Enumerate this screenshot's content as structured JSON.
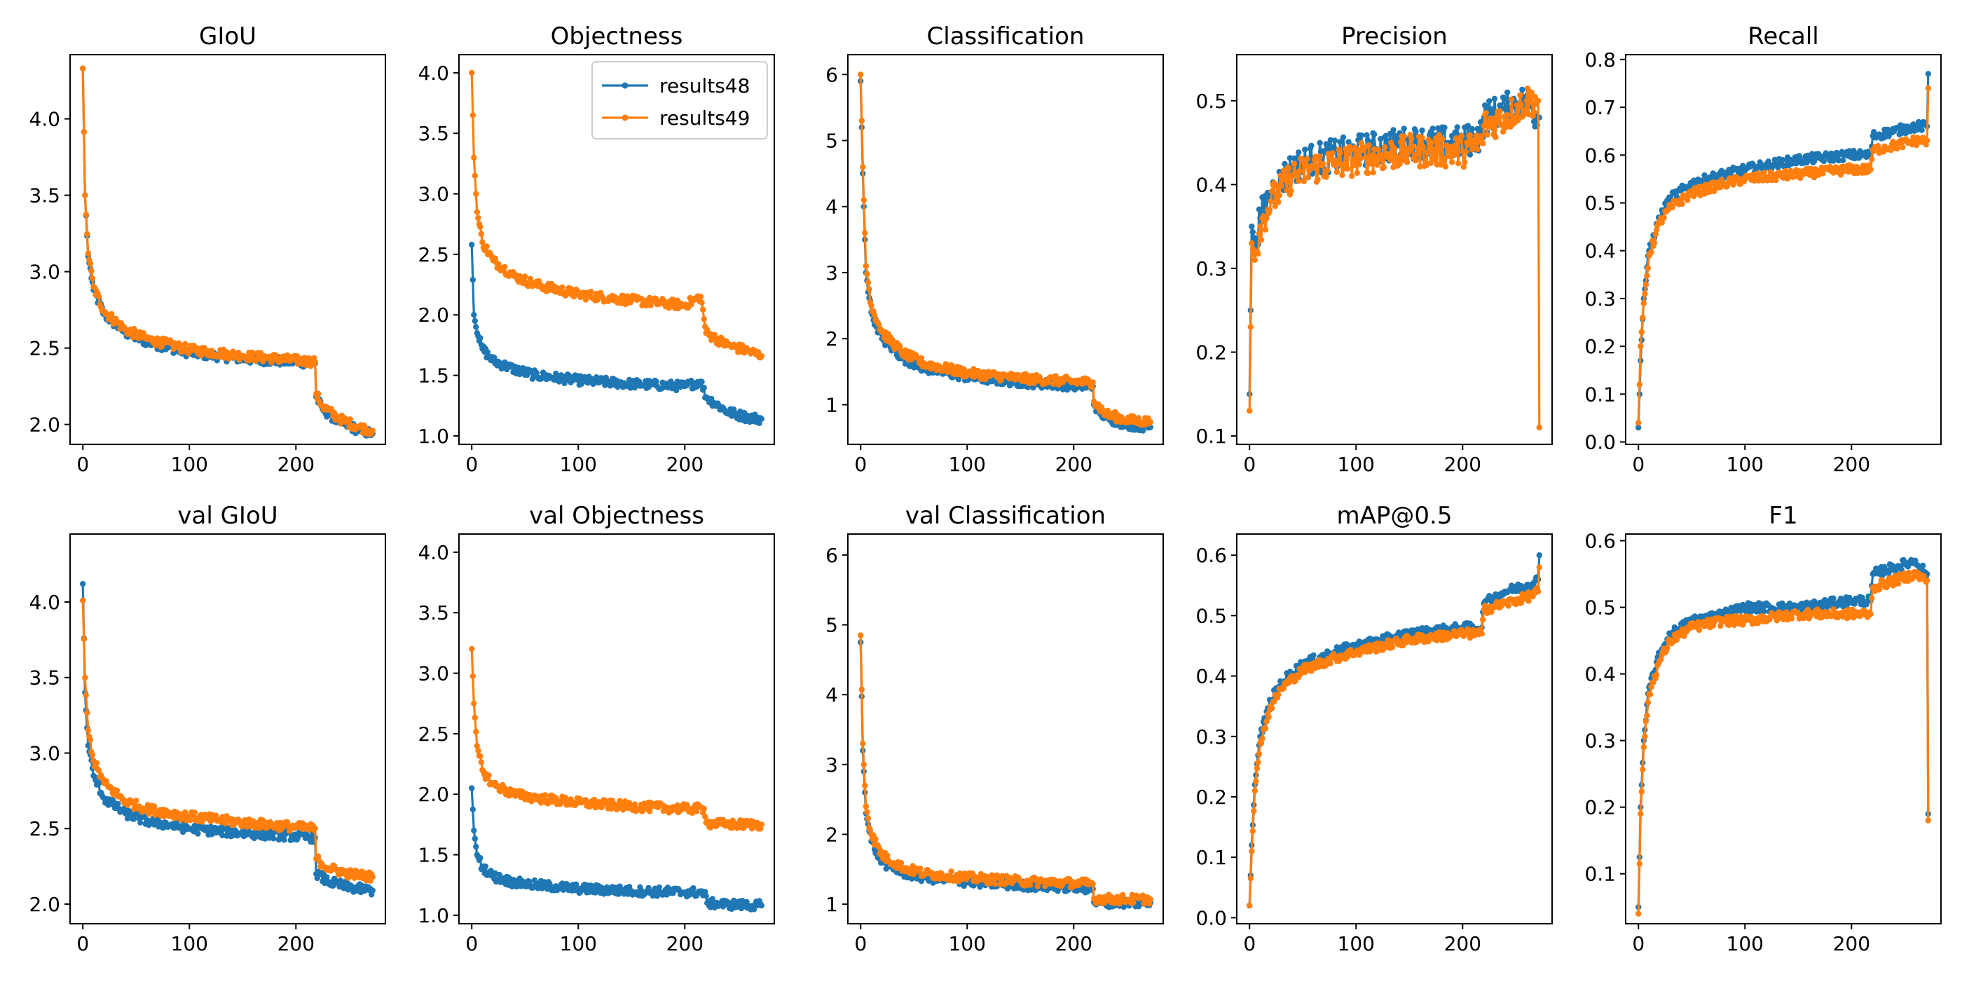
{
  "chart_data": [
    {
      "type": "line",
      "title": "GIoU",
      "xlabel": "",
      "ylabel": "",
      "xlim": [
        -12,
        284
      ],
      "ylim": [
        1.87,
        4.42
      ],
      "xticks": [
        0,
        100,
        200
      ],
      "xtick_labels": [
        "0",
        "100",
        "200"
      ],
      "yticks": [
        2.0,
        2.5,
        3.0,
        3.5,
        4.0
      ],
      "ytick_labels": [
        "2.0",
        "2.5",
        "3.0",
        "3.5",
        "4.0"
      ],
      "legend": null,
      "series": [
        {
          "name": "results48",
          "color": "#1f77b4",
          "x": [
            0,
            2,
            5,
            10,
            20,
            40,
            60,
            100,
            150,
            200,
            218,
            219,
            225,
            240,
            260,
            272
          ],
          "y": [
            4.33,
            3.5,
            3.1,
            2.88,
            2.72,
            2.6,
            2.54,
            2.47,
            2.43,
            2.41,
            2.4,
            2.18,
            2.1,
            2.02,
            1.96,
            1.94
          ]
        },
        {
          "name": "results49",
          "color": "#ff7f0e",
          "x": [
            0,
            2,
            5,
            10,
            20,
            40,
            60,
            100,
            150,
            200,
            218,
            219,
            225,
            240,
            260,
            272
          ],
          "y": [
            4.33,
            3.5,
            3.12,
            2.9,
            2.74,
            2.62,
            2.56,
            2.49,
            2.45,
            2.42,
            2.41,
            2.2,
            2.12,
            2.04,
            1.98,
            1.96
          ]
        }
      ]
    },
    {
      "type": "line",
      "title": "Objectness",
      "xlabel": "",
      "ylabel": "",
      "xlim": [
        -12,
        284
      ],
      "ylim": [
        0.93,
        4.15
      ],
      "xticks": [
        0,
        100,
        200
      ],
      "xtick_labels": [
        "0",
        "100",
        "200"
      ],
      "yticks": [
        1.0,
        1.5,
        2.0,
        2.5,
        3.0,
        3.5,
        4.0
      ],
      "ytick_labels": [
        "1.0",
        "1.5",
        "2.0",
        "2.5",
        "3.0",
        "3.5",
        "4.0"
      ],
      "legend": {
        "location": "top-right",
        "entries": [
          "results48",
          "results49"
        ]
      },
      "series": [
        {
          "name": "results48",
          "color": "#1f77b4",
          "x": [
            0,
            2,
            5,
            10,
            20,
            40,
            60,
            100,
            150,
            200,
            215,
            220,
            240,
            260,
            272
          ],
          "y": [
            2.58,
            2.0,
            1.85,
            1.72,
            1.62,
            1.55,
            1.5,
            1.46,
            1.43,
            1.41,
            1.45,
            1.32,
            1.2,
            1.15,
            1.14
          ]
        },
        {
          "name": "results49",
          "color": "#ff7f0e",
          "x": [
            0,
            2,
            5,
            10,
            20,
            40,
            60,
            100,
            150,
            200,
            215,
            220,
            240,
            260,
            272
          ],
          "y": [
            4.0,
            3.3,
            2.85,
            2.6,
            2.45,
            2.32,
            2.25,
            2.17,
            2.12,
            2.08,
            2.15,
            1.85,
            1.75,
            1.7,
            1.66
          ]
        }
      ]
    },
    {
      "type": "line",
      "title": "Classification",
      "xlabel": "",
      "ylabel": "",
      "xlim": [
        -12,
        284
      ],
      "ylim": [
        0.4,
        6.3
      ],
      "xticks": [
        0,
        100,
        200
      ],
      "xtick_labels": [
        "0",
        "100",
        "200"
      ],
      "yticks": [
        1,
        2,
        3,
        4,
        5,
        6
      ],
      "ytick_labels": [
        "1",
        "2",
        "3",
        "4",
        "5",
        "6"
      ],
      "legend": null,
      "series": [
        {
          "name": "results48",
          "color": "#1f77b4",
          "x": [
            0,
            2,
            5,
            10,
            20,
            40,
            60,
            100,
            150,
            200,
            218,
            219,
            230,
            250,
            272
          ],
          "y": [
            5.9,
            4.5,
            3.0,
            2.4,
            2.0,
            1.7,
            1.55,
            1.42,
            1.34,
            1.29,
            1.28,
            1.0,
            0.8,
            0.7,
            0.66
          ]
        },
        {
          "name": "results49",
          "color": "#ff7f0e",
          "x": [
            0,
            2,
            5,
            10,
            20,
            40,
            60,
            100,
            150,
            200,
            218,
            219,
            230,
            250,
            272
          ],
          "y": [
            6.0,
            4.6,
            3.1,
            2.5,
            2.1,
            1.78,
            1.62,
            1.48,
            1.4,
            1.35,
            1.34,
            1.05,
            0.86,
            0.77,
            0.74
          ]
        }
      ]
    },
    {
      "type": "line",
      "title": "Precision",
      "xlabel": "",
      "ylabel": "",
      "xlim": [
        -12,
        284
      ],
      "ylim": [
        0.09,
        0.555
      ],
      "xticks": [
        0,
        100,
        200
      ],
      "xtick_labels": [
        "0",
        "100",
        "200"
      ],
      "yticks": [
        0.1,
        0.2,
        0.3,
        0.4,
        0.5
      ],
      "ytick_labels": [
        "0.1",
        "0.2",
        "0.3",
        "0.4",
        "0.5"
      ],
      "legend": null,
      "series": [
        {
          "name": "results48",
          "color": "#1f77b4",
          "x": [
            0,
            2,
            5,
            10,
            20,
            40,
            60,
            100,
            150,
            200,
            218,
            220,
            240,
            260,
            271,
            272
          ],
          "y": [
            0.15,
            0.35,
            0.33,
            0.36,
            0.39,
            0.42,
            0.43,
            0.44,
            0.45,
            0.45,
            0.46,
            0.48,
            0.49,
            0.5,
            0.48,
            0.48
          ]
        },
        {
          "name": "results49",
          "color": "#ff7f0e",
          "x": [
            0,
            2,
            5,
            10,
            20,
            40,
            60,
            100,
            150,
            200,
            218,
            220,
            240,
            260,
            271,
            272
          ],
          "y": [
            0.13,
            0.33,
            0.31,
            0.35,
            0.38,
            0.41,
            0.42,
            0.43,
            0.44,
            0.44,
            0.45,
            0.47,
            0.48,
            0.5,
            0.5,
            0.11
          ]
        }
      ]
    },
    {
      "type": "line",
      "title": "Recall",
      "xlabel": "",
      "ylabel": "",
      "xlim": [
        -12,
        284
      ],
      "ylim": [
        -0.005,
        0.81
      ],
      "xticks": [
        0,
        100,
        200
      ],
      "xtick_labels": [
        "0",
        "100",
        "200"
      ],
      "yticks": [
        0.0,
        0.1,
        0.2,
        0.3,
        0.4,
        0.5,
        0.6,
        0.7,
        0.8
      ],
      "ytick_labels": [
        "0.0",
        "0.1",
        "0.2",
        "0.3",
        "0.4",
        "0.5",
        "0.6",
        "0.7",
        "0.8"
      ],
      "legend": null,
      "series": [
        {
          "name": "results48",
          "color": "#1f77b4",
          "x": [
            0,
            2,
            5,
            10,
            20,
            30,
            50,
            80,
            100,
            150,
            200,
            218,
            220,
            240,
            260,
            271,
            272
          ],
          "y": [
            0.03,
            0.17,
            0.3,
            0.4,
            0.47,
            0.51,
            0.54,
            0.56,
            0.57,
            0.59,
            0.6,
            0.6,
            0.64,
            0.65,
            0.66,
            0.66,
            0.77
          ]
        },
        {
          "name": "results49",
          "color": "#ff7f0e",
          "x": [
            0,
            2,
            5,
            10,
            20,
            30,
            50,
            80,
            100,
            150,
            200,
            218,
            220,
            240,
            260,
            271,
            272
          ],
          "y": [
            0.04,
            0.2,
            0.29,
            0.39,
            0.46,
            0.49,
            0.52,
            0.54,
            0.55,
            0.56,
            0.57,
            0.57,
            0.61,
            0.62,
            0.63,
            0.63,
            0.74
          ]
        }
      ]
    },
    {
      "type": "line",
      "title": "val GIoU",
      "xlabel": "",
      "ylabel": "",
      "xlim": [
        -12,
        284
      ],
      "ylim": [
        1.87,
        4.45
      ],
      "xticks": [
        0,
        100,
        200
      ],
      "xtick_labels": [
        "0",
        "100",
        "200"
      ],
      "yticks": [
        2.0,
        2.5,
        3.0,
        3.5,
        4.0
      ],
      "ytick_labels": [
        "2.0",
        "2.5",
        "3.0",
        "3.5",
        "4.0"
      ],
      "legend": null,
      "series": [
        {
          "name": "results48",
          "color": "#1f77b4",
          "x": [
            0,
            2,
            5,
            10,
            20,
            40,
            60,
            100,
            150,
            200,
            218,
            219,
            230,
            250,
            272
          ],
          "y": [
            4.12,
            3.4,
            3.05,
            2.85,
            2.7,
            2.6,
            2.55,
            2.5,
            2.47,
            2.45,
            2.44,
            2.2,
            2.15,
            2.11,
            2.09
          ]
        },
        {
          "name": "results49",
          "color": "#ff7f0e",
          "x": [
            0,
            2,
            5,
            10,
            20,
            40,
            60,
            100,
            150,
            200,
            218,
            219,
            230,
            250,
            272
          ],
          "y": [
            4.01,
            3.5,
            3.15,
            2.95,
            2.8,
            2.68,
            2.63,
            2.58,
            2.54,
            2.51,
            2.5,
            2.3,
            2.24,
            2.2,
            2.18
          ]
        }
      ]
    },
    {
      "type": "line",
      "title": "val Objectness",
      "xlabel": "",
      "ylabel": "",
      "xlim": [
        -12,
        284
      ],
      "ylim": [
        0.93,
        4.15
      ],
      "xticks": [
        0,
        100,
        200
      ],
      "xtick_labels": [
        "0",
        "100",
        "200"
      ],
      "yticks": [
        1.0,
        1.5,
        2.0,
        2.5,
        3.0,
        3.5,
        4.0
      ],
      "ytick_labels": [
        "1.0",
        "1.5",
        "2.0",
        "2.5",
        "3.0",
        "3.5",
        "4.0"
      ],
      "legend": null,
      "series": [
        {
          "name": "results48",
          "color": "#1f77b4",
          "x": [
            0,
            2,
            5,
            10,
            20,
            40,
            60,
            100,
            150,
            200,
            218,
            221,
            240,
            272
          ],
          "y": [
            2.05,
            1.7,
            1.5,
            1.4,
            1.32,
            1.27,
            1.25,
            1.22,
            1.2,
            1.19,
            1.19,
            1.1,
            1.09,
            1.08
          ]
        },
        {
          "name": "results49",
          "color": "#ff7f0e",
          "x": [
            0,
            2,
            5,
            10,
            20,
            40,
            60,
            100,
            150,
            200,
            218,
            221,
            240,
            272
          ],
          "y": [
            3.2,
            2.75,
            2.4,
            2.2,
            2.08,
            2.0,
            1.97,
            1.93,
            1.9,
            1.88,
            1.88,
            1.76,
            1.75,
            1.75
          ]
        }
      ]
    },
    {
      "type": "line",
      "title": "val Classification",
      "xlabel": "",
      "ylabel": "",
      "xlim": [
        -12,
        284
      ],
      "ylim": [
        0.72,
        6.3
      ],
      "xticks": [
        0,
        100,
        200
      ],
      "xtick_labels": [
        "0",
        "100",
        "200"
      ],
      "yticks": [
        1,
        2,
        3,
        4,
        5,
        6
      ],
      "ytick_labels": [
        "1",
        "2",
        "3",
        "4",
        "5",
        "6"
      ],
      "legend": null,
      "series": [
        {
          "name": "results48",
          "color": "#1f77b4",
          "x": [
            0,
            2,
            5,
            10,
            20,
            40,
            60,
            100,
            150,
            200,
            218,
            219,
            240,
            272
          ],
          "y": [
            4.75,
            3.2,
            2.3,
            1.9,
            1.6,
            1.45,
            1.38,
            1.32,
            1.27,
            1.24,
            1.22,
            1.03,
            1.02,
            1.02
          ]
        },
        {
          "name": "results49",
          "color": "#ff7f0e",
          "x": [
            0,
            2,
            5,
            10,
            20,
            40,
            60,
            100,
            150,
            200,
            218,
            219,
            240,
            272
          ],
          "y": [
            4.85,
            3.3,
            2.4,
            2.0,
            1.7,
            1.52,
            1.44,
            1.38,
            1.33,
            1.3,
            1.29,
            1.08,
            1.07,
            1.07
          ]
        }
      ]
    },
    {
      "type": "line",
      "title": "mAP@0.5",
      "xlabel": "",
      "ylabel": "",
      "xlim": [
        -12,
        284
      ],
      "ylim": [
        -0.01,
        0.635
      ],
      "xticks": [
        0,
        100,
        200
      ],
      "xtick_labels": [
        "0",
        "100",
        "200"
      ],
      "yticks": [
        0.0,
        0.1,
        0.2,
        0.3,
        0.4,
        0.5,
        0.6
      ],
      "ytick_labels": [
        "0.0",
        "0.1",
        "0.2",
        "0.3",
        "0.4",
        "0.5",
        "0.6"
      ],
      "legend": null,
      "series": [
        {
          "name": "results48",
          "color": "#1f77b4",
          "x": [
            0,
            2,
            5,
            10,
            20,
            30,
            50,
            80,
            100,
            150,
            200,
            218,
            220,
            240,
            260,
            271,
            272
          ],
          "y": [
            0.02,
            0.12,
            0.22,
            0.3,
            0.36,
            0.39,
            0.42,
            0.44,
            0.45,
            0.47,
            0.48,
            0.48,
            0.52,
            0.54,
            0.55,
            0.56,
            0.6
          ]
        },
        {
          "name": "results49",
          "color": "#ff7f0e",
          "x": [
            0,
            2,
            5,
            10,
            20,
            30,
            50,
            80,
            100,
            150,
            200,
            218,
            220,
            240,
            260,
            271,
            272
          ],
          "y": [
            0.02,
            0.11,
            0.21,
            0.29,
            0.35,
            0.38,
            0.41,
            0.43,
            0.44,
            0.46,
            0.47,
            0.47,
            0.51,
            0.52,
            0.53,
            0.54,
            0.58
          ]
        }
      ]
    },
    {
      "type": "line",
      "title": "F1",
      "xlabel": "",
      "ylabel": "",
      "xlim": [
        -12,
        284
      ],
      "ylim": [
        0.025,
        0.61
      ],
      "xticks": [
        0,
        100,
        200
      ],
      "xtick_labels": [
        "0",
        "100",
        "200"
      ],
      "yticks": [
        0.1,
        0.2,
        0.3,
        0.4,
        0.5,
        0.6
      ],
      "ytick_labels": [
        "0.1",
        "0.2",
        "0.3",
        "0.4",
        "0.5",
        "0.6"
      ],
      "legend": null,
      "series": [
        {
          "name": "results48",
          "color": "#1f77b4",
          "x": [
            0,
            2,
            5,
            10,
            20,
            30,
            50,
            80,
            100,
            150,
            200,
            218,
            220,
            240,
            260,
            271,
            272
          ],
          "y": [
            0.05,
            0.2,
            0.3,
            0.38,
            0.43,
            0.46,
            0.48,
            0.49,
            0.5,
            0.5,
            0.51,
            0.51,
            0.55,
            0.56,
            0.57,
            0.55,
            0.19
          ]
        },
        {
          "name": "results49",
          "color": "#ff7f0e",
          "x": [
            0,
            2,
            5,
            10,
            20,
            30,
            50,
            80,
            100,
            150,
            200,
            218,
            220,
            240,
            260,
            271,
            272
          ],
          "y": [
            0.04,
            0.19,
            0.29,
            0.37,
            0.42,
            0.45,
            0.47,
            0.48,
            0.48,
            0.49,
            0.49,
            0.49,
            0.53,
            0.54,
            0.55,
            0.54,
            0.18
          ]
        }
      ]
    }
  ]
}
